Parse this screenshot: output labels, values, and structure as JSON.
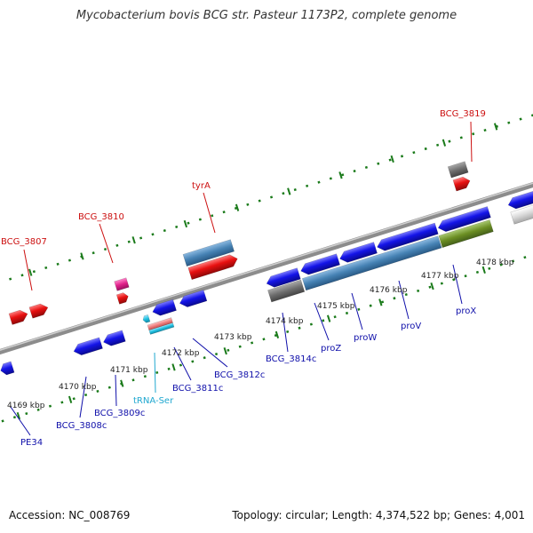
{
  "title": "Mycobacterium bovis BCG str. Pasteur 1173P2, complete genome",
  "footer": {
    "accession": "Accession: NC_008769",
    "summary": "Topology: circular; Length: 4,374,522 bp; Genes: 4,001"
  },
  "colors": {
    "forward_gene": "#e81010",
    "reverse_gene": "#1010e0",
    "trna": "#20c0e0",
    "pseudo": "#e0208a",
    "label_red": "#cc1010",
    "label_blue": "#1010aa",
    "label_trna": "#20a8d0",
    "tick": "#1a7a1a"
  },
  "scale": {
    "ticks": [
      "4169 kbp",
      "4170 kbp",
      "4171 kbp",
      "4172 kbp",
      "4173 kbp",
      "4174 kbp",
      "4175 kbp",
      "4176 kbp",
      "4177 kbp",
      "4178 kbp"
    ]
  },
  "genes": [
    {
      "label": "BCG_3807",
      "strand": "forward"
    },
    {
      "label": "BCG_3810",
      "strand": "forward"
    },
    {
      "label": "tyrA",
      "strand": "forward"
    },
    {
      "label": "BCG_3819",
      "strand": "forward"
    },
    {
      "label": "PE34",
      "strand": "reverse"
    },
    {
      "label": "BCG_3808c",
      "strand": "reverse"
    },
    {
      "label": "BCG_3809c",
      "strand": "reverse"
    },
    {
      "label": "tRNA-Ser",
      "strand": "reverse"
    },
    {
      "label": "BCG_3811c",
      "strand": "reverse"
    },
    {
      "label": "BCG_3812c",
      "strand": "reverse"
    },
    {
      "label": "BCG_3814c",
      "strand": "reverse"
    },
    {
      "label": "proZ",
      "strand": "reverse"
    },
    {
      "label": "proW",
      "strand": "reverse"
    },
    {
      "label": "proV",
      "strand": "reverse"
    },
    {
      "label": "proX",
      "strand": "reverse"
    }
  ]
}
